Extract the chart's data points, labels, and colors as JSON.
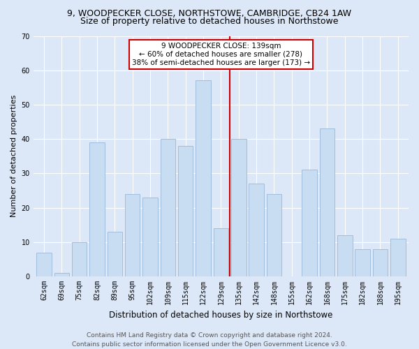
{
  "title1": "9, WOODPECKER CLOSE, NORTHSTOWE, CAMBRIDGE, CB24 1AW",
  "title2": "Size of property relative to detached houses in Northstowe",
  "xlabel": "Distribution of detached houses by size in Northstowe",
  "ylabel": "Number of detached properties",
  "categories": [
    "62sqm",
    "69sqm",
    "75sqm",
    "82sqm",
    "89sqm",
    "95sqm",
    "102sqm",
    "109sqm",
    "115sqm",
    "122sqm",
    "129sqm",
    "135sqm",
    "142sqm",
    "148sqm",
    "155sqm",
    "162sqm",
    "168sqm",
    "175sqm",
    "182sqm",
    "188sqm",
    "195sqm"
  ],
  "values": [
    7,
    1,
    10,
    39,
    13,
    24,
    23,
    40,
    38,
    57,
    14,
    40,
    27,
    24,
    0,
    31,
    43,
    12,
    8,
    8,
    11
  ],
  "bar_color": "#c9ddf2",
  "bar_edge_color": "#a0bedd",
  "vline_color": "#cc0000",
  "vline_pos": 10.5,
  "annotation_text": "9 WOODPECKER CLOSE: 139sqm\n← 60% of detached houses are smaller (278)\n38% of semi-detached houses are larger (173) →",
  "annotation_box_color": "#cc0000",
  "background_color": "#dce8f8",
  "plot_bg_color": "#dce8f8",
  "ylim": [
    0,
    70
  ],
  "yticks": [
    0,
    10,
    20,
    30,
    40,
    50,
    60,
    70
  ],
  "footer": "Contains HM Land Registry data © Crown copyright and database right 2024.\nContains public sector information licensed under the Open Government Licence v3.0.",
  "title1_fontsize": 9,
  "title2_fontsize": 9,
  "xlabel_fontsize": 8.5,
  "ylabel_fontsize": 8,
  "tick_fontsize": 7,
  "footer_fontsize": 6.5,
  "annot_fontsize": 7.5
}
